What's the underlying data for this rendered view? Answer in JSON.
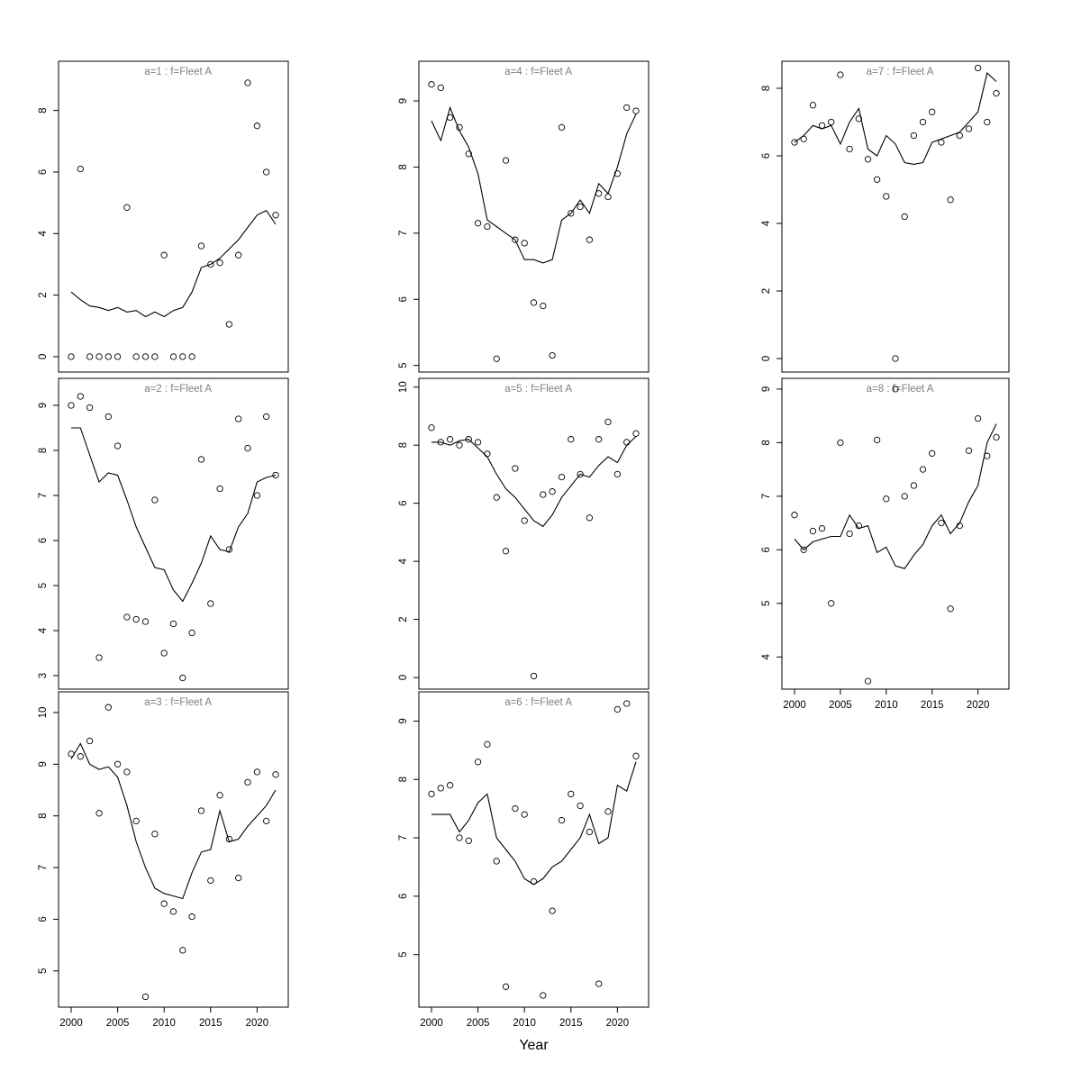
{
  "figure": {
    "background": "#ffffff",
    "axis_color": "#000000",
    "point_color": "#000000",
    "line_color": "#000000",
    "title_color": "#7f7f7f"
  },
  "chart_data": {
    "type": "scatter",
    "title": "",
    "xlabel": "Year",
    "grid": "off",
    "legend": "none",
    "x": [
      2000,
      2001,
      2002,
      2003,
      2004,
      2005,
      2006,
      2007,
      2008,
      2009,
      2010,
      2011,
      2012,
      2013,
      2014,
      2015,
      2016,
      2017,
      2018,
      2019,
      2020,
      2021,
      2022
    ],
    "xticks": [
      2000,
      2005,
      2010,
      2015,
      2020
    ],
    "xlim": [
      1999,
      2023.5
    ],
    "panels": [
      {
        "id": "a1",
        "label": "a=1  :  f=Fleet A",
        "row": 0,
        "col": 0,
        "ylim": [
          -0.5,
          9.6
        ],
        "yticks": [
          0,
          2,
          4,
          6,
          8
        ],
        "show_xaxis": false,
        "obs": [
          0,
          6.1,
          0,
          0,
          0,
          0,
          4.85,
          0,
          0,
          0,
          3.3,
          0,
          0,
          0,
          3.6,
          3.0,
          3.05,
          1.05,
          3.3,
          8.9,
          7.5,
          6.0,
          4.6
        ],
        "fit": [
          2.1,
          1.85,
          1.65,
          1.6,
          1.5,
          1.6,
          1.45,
          1.5,
          1.3,
          1.45,
          1.3,
          1.5,
          1.6,
          2.1,
          2.9,
          3.0,
          3.2,
          3.5,
          3.8,
          4.2,
          4.6,
          4.75,
          4.3
        ]
      },
      {
        "id": "a2",
        "label": "a=2  :  f=Fleet A",
        "row": 1,
        "col": 0,
        "ylim": [
          2.7,
          9.6
        ],
        "yticks": [
          3,
          4,
          5,
          6,
          7,
          8,
          9
        ],
        "show_xaxis": false,
        "obs": [
          9.0,
          9.2,
          8.95,
          3.4,
          8.75,
          8.1,
          4.3,
          4.25,
          4.2,
          6.9,
          3.5,
          4.15,
          2.95,
          3.95,
          7.8,
          4.6,
          7.15,
          5.8,
          8.7,
          8.05,
          7.0,
          8.75,
          7.45
        ],
        "fit": [
          8.5,
          8.5,
          7.9,
          7.3,
          7.5,
          7.45,
          6.9,
          6.3,
          5.85,
          5.4,
          5.35,
          4.9,
          4.65,
          5.05,
          5.5,
          6.1,
          5.8,
          5.75,
          6.3,
          6.6,
          7.3,
          7.4,
          7.45
        ]
      },
      {
        "id": "a3",
        "label": "a=3  :  f=Fleet A",
        "row": 2,
        "col": 0,
        "ylim": [
          4.3,
          10.4
        ],
        "yticks": [
          5,
          6,
          7,
          8,
          9,
          10
        ],
        "show_xaxis": true,
        "obs": [
          9.2,
          9.15,
          9.45,
          8.05,
          10.1,
          9.0,
          8.85,
          7.9,
          4.5,
          7.65,
          6.3,
          6.15,
          5.4,
          6.05,
          8.1,
          6.75,
          8.4,
          7.55,
          6.8,
          8.65,
          8.85,
          7.9,
          8.8
        ],
        "fit": [
          9.1,
          9.4,
          9.0,
          8.9,
          8.95,
          8.75,
          8.2,
          7.5,
          7.0,
          6.6,
          6.5,
          6.45,
          6.4,
          6.9,
          7.3,
          7.35,
          8.1,
          7.5,
          7.55,
          7.8,
          8.0,
          8.2,
          8.5
        ]
      },
      {
        "id": "a4",
        "label": "a=4  :  f=Fleet A",
        "row": 0,
        "col": 1,
        "ylim": [
          4.9,
          9.6
        ],
        "yticks": [
          5,
          6,
          7,
          8,
          9
        ],
        "show_xaxis": false,
        "obs": [
          9.25,
          9.2,
          8.75,
          8.6,
          8.2,
          7.15,
          7.1,
          5.1,
          8.1,
          6.9,
          6.85,
          5.95,
          5.9,
          5.15,
          8.6,
          7.3,
          7.4,
          6.9,
          7.6,
          7.55,
          7.9,
          8.9,
          8.85
        ],
        "fit": [
          8.7,
          8.4,
          8.9,
          8.55,
          8.3,
          7.9,
          7.2,
          7.1,
          7.0,
          6.9,
          6.6,
          6.6,
          6.55,
          6.6,
          7.2,
          7.3,
          7.5,
          7.3,
          7.75,
          7.6,
          8.0,
          8.5,
          8.8
        ]
      },
      {
        "id": "a5",
        "label": "a=5  :  f=Fleet A",
        "row": 1,
        "col": 1,
        "ylim": [
          -0.4,
          10.3
        ],
        "yticks": [
          0,
          2,
          4,
          6,
          8,
          10
        ],
        "show_xaxis": false,
        "obs": [
          8.6,
          8.1,
          8.2,
          8.0,
          8.2,
          8.1,
          7.7,
          6.2,
          4.35,
          7.2,
          5.4,
          0.05,
          6.3,
          6.4,
          6.9,
          8.2,
          7.0,
          5.5,
          8.2,
          8.8,
          7.0,
          8.1,
          8.4
        ],
        "fit": [
          8.1,
          8.1,
          8.0,
          8.15,
          8.2,
          7.9,
          7.6,
          7.0,
          6.5,
          6.2,
          5.8,
          5.4,
          5.2,
          5.6,
          6.2,
          6.6,
          7.0,
          6.9,
          7.3,
          7.6,
          7.4,
          8.0,
          8.3
        ]
      },
      {
        "id": "a6",
        "label": "a=6  :  f=Fleet A",
        "row": 2,
        "col": 1,
        "ylim": [
          4.1,
          9.5
        ],
        "yticks": [
          5,
          6,
          7,
          8,
          9
        ],
        "show_xaxis": true,
        "obs": [
          7.75,
          7.85,
          7.9,
          7.0,
          6.95,
          8.3,
          8.6,
          6.6,
          4.45,
          7.5,
          7.4,
          6.25,
          4.3,
          5.75,
          7.3,
          7.75,
          7.55,
          7.1,
          4.5,
          7.45,
          9.2,
          9.3,
          8.4
        ],
        "fit": [
          7.4,
          7.4,
          7.4,
          7.1,
          7.3,
          7.6,
          7.75,
          7.0,
          6.8,
          6.6,
          6.3,
          6.2,
          6.3,
          6.5,
          6.6,
          6.8,
          7.0,
          7.4,
          6.9,
          7.0,
          7.9,
          7.8,
          8.3
        ]
      },
      {
        "id": "a7",
        "label": "a=7  :  f=Fleet A",
        "row": 0,
        "col": 2,
        "ylim": [
          -0.4,
          8.8
        ],
        "yticks": [
          0,
          2,
          4,
          6,
          8
        ],
        "show_xaxis": false,
        "obs": [
          6.4,
          6.5,
          7.5,
          6.9,
          7.0,
          8.4,
          6.2,
          7.1,
          5.9,
          5.3,
          4.8,
          0.0,
          4.2,
          6.6,
          7.0,
          7.3,
          6.4,
          4.7,
          6.6,
          6.8,
          8.6,
          7.0,
          7.85
        ],
        "fit": [
          6.4,
          6.6,
          6.9,
          6.8,
          6.9,
          6.35,
          7.0,
          7.4,
          6.2,
          6.0,
          6.6,
          6.35,
          5.8,
          5.75,
          5.8,
          6.4,
          6.5,
          6.6,
          6.7,
          7.0,
          7.3,
          8.45,
          8.2
        ]
      },
      {
        "id": "a8",
        "label": "a=8  :  f=Fleet A",
        "row": 1,
        "col": 2,
        "ylim": [
          3.4,
          9.2
        ],
        "yticks": [
          4,
          5,
          6,
          7,
          8,
          9
        ],
        "show_xaxis": true,
        "obs": [
          6.65,
          6.0,
          6.35,
          6.4,
          5.0,
          8.0,
          6.3,
          6.45,
          3.55,
          8.05,
          6.95,
          9.0,
          7.0,
          7.2,
          7.5,
          7.8,
          6.5,
          4.9,
          6.45,
          7.85,
          8.45,
          7.75,
          8.1
        ],
        "fit": [
          6.2,
          6.0,
          6.15,
          6.2,
          6.25,
          6.25,
          6.65,
          6.4,
          6.45,
          5.95,
          6.05,
          5.7,
          5.65,
          5.9,
          6.1,
          6.45,
          6.65,
          6.3,
          6.5,
          6.9,
          7.2,
          8.0,
          8.35
        ]
      }
    ]
  }
}
